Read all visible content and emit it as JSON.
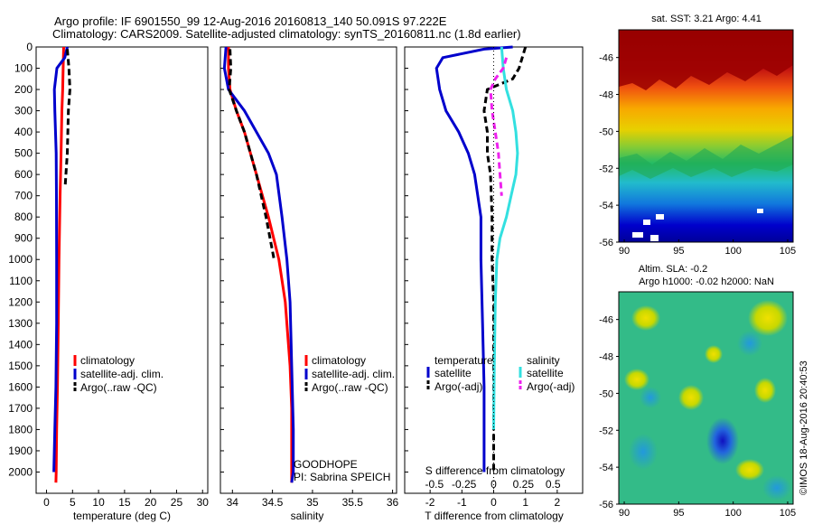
{
  "header": {
    "title_line1": "Argo profile: IF 6901550_99 12-Aug-2016 20160813_140 50.091S 97.222E",
    "title_line2": "Climatology: CARS2009. Satellite-adjusted climatology: synTS_20160811.nc (1.8d earlier)"
  },
  "legends": {
    "temperature": [
      "climatology",
      "satellite-adj. clim.",
      "Argo(..raw -QC)"
    ],
    "salinity": [
      "climatology",
      "satellite-adj. clim.",
      "Argo(..raw -QC)"
    ],
    "diff_temperature_title": "temperature",
    "diff_salinity_title": "salinity",
    "diff_temperature": [
      "satellite",
      "Argo(-adj)"
    ],
    "diff_salinity": [
      "satellite",
      "Argo(-adj)"
    ]
  },
  "annotations": {
    "goodhope_line1": "GOODHOPE",
    "goodhope_line2": "PI: Sabrina SPEICH",
    "diff_s_title": "S difference from climatology",
    "map_sst_title": "sat. SST: 3.21 Argo: 4.41",
    "map_sla_line1": "Altim. SLA: -0.2",
    "map_sla_line2": "Argo h1000: -0.02 h2000: NaN",
    "credit": "©IMOS 18-Aug-2016 20:40:53"
  },
  "colors": {
    "climatology": "#ff0000",
    "satellite_adj": "#0000cc",
    "argo": "#000000",
    "sal_satellite": "#33e0e0",
    "sal_argo": "#ee22ee"
  },
  "chart_data": [
    {
      "type": "line",
      "xlabel": "temperature (deg C)",
      "ylabel": "",
      "xlim": [
        -2,
        31
      ],
      "ylim": [
        2100,
        0
      ],
      "xticks": [
        0,
        5,
        10,
        15,
        20,
        25,
        30
      ],
      "yticks": [
        0,
        100,
        200,
        300,
        400,
        500,
        600,
        700,
        800,
        900,
        1000,
        1100,
        1200,
        1300,
        1400,
        1500,
        1600,
        1700,
        1800,
        1900,
        2000
      ],
      "series": [
        {
          "name": "climatology",
          "style": "solid",
          "points": [
            [
              3.3,
              0
            ],
            [
              3.2,
              100
            ],
            [
              3.1,
              200
            ],
            [
              2.95,
              300
            ],
            [
              2.8,
              500
            ],
            [
              2.6,
              700
            ],
            [
              2.4,
              1000
            ],
            [
              2.25,
              1300
            ],
            [
              2.1,
              1600
            ],
            [
              1.95,
              1800
            ],
            [
              1.85,
              2000
            ],
            [
              1.8,
              2050
            ]
          ]
        },
        {
          "name": "satellite-adj. clim.",
          "style": "solid",
          "points": [
            [
              4.0,
              0
            ],
            [
              3.5,
              50
            ],
            [
              2.0,
              100
            ],
            [
              1.5,
              200
            ],
            [
              1.6,
              300
            ],
            [
              1.85,
              500
            ],
            [
              1.9,
              700
            ],
            [
              1.95,
              1000
            ],
            [
              1.95,
              1300
            ],
            [
              1.8,
              1600
            ],
            [
              1.6,
              1800
            ],
            [
              1.4,
              2000
            ]
          ]
        },
        {
          "name": "Argo(..raw -QC)",
          "style": "dashed",
          "points": [
            [
              4.0,
              10
            ],
            [
              4.3,
              100
            ],
            [
              4.5,
              200
            ],
            [
              4.2,
              300
            ],
            [
              4.0,
              500
            ],
            [
              3.6,
              650
            ]
          ]
        }
      ]
    },
    {
      "type": "line",
      "xlabel": "salinity",
      "ylabel": "",
      "xlim": [
        33.85,
        36.05
      ],
      "ylim": [
        2100,
        0
      ],
      "xticks": [
        34,
        34.5,
        35,
        35.5,
        36
      ],
      "series": [
        {
          "name": "climatology",
          "style": "solid",
          "points": [
            [
              33.95,
              0
            ],
            [
              33.95,
              100
            ],
            [
              33.97,
              200
            ],
            [
              34.05,
              300
            ],
            [
              34.15,
              400
            ],
            [
              34.3,
              600
            ],
            [
              34.45,
              800
            ],
            [
              34.58,
              1000
            ],
            [
              34.66,
              1200
            ],
            [
              34.72,
              1500
            ],
            [
              34.74,
              1700
            ],
            [
              34.74,
              2000
            ],
            [
              34.74,
              2050
            ]
          ]
        },
        {
          "name": "satellite-adj. clim.",
          "style": "solid",
          "points": [
            [
              33.92,
              0
            ],
            [
              33.9,
              100
            ],
            [
              33.95,
              200
            ],
            [
              34.15,
              300
            ],
            [
              34.3,
              400
            ],
            [
              34.45,
              500
            ],
            [
              34.55,
              600
            ],
            [
              34.62,
              800
            ],
            [
              34.68,
              1000
            ],
            [
              34.72,
              1200
            ],
            [
              34.74,
              1500
            ],
            [
              34.76,
              1800
            ],
            [
              34.76,
              2000
            ],
            [
              34.74,
              2050
            ]
          ]
        },
        {
          "name": "Argo(..raw -QC)",
          "style": "dashed",
          "points": [
            [
              33.97,
              10
            ],
            [
              33.98,
              100
            ],
            [
              33.96,
              200
            ],
            [
              34.05,
              300
            ],
            [
              34.15,
              400
            ],
            [
              34.3,
              600
            ],
            [
              34.42,
              800
            ],
            [
              34.52,
              1000
            ]
          ]
        }
      ]
    },
    {
      "type": "line",
      "xlabel": "T difference from climatology",
      "ylabel": "",
      "xlim": [
        -2.8,
        2.8
      ],
      "ylim": [
        2100,
        0
      ],
      "xticks": [
        -2,
        -1,
        0,
        1,
        2
      ],
      "top_xticks": [
        -0.5,
        -0.25,
        0,
        0.25,
        0.5
      ],
      "series": [
        {
          "name": "temperature satellite",
          "style": "solid",
          "points": [
            [
              0.6,
              0
            ],
            [
              -0.3,
              10
            ],
            [
              -1.6,
              50
            ],
            [
              -1.8,
              100
            ],
            [
              -1.7,
              200
            ],
            [
              -1.5,
              300
            ],
            [
              -1.1,
              400
            ],
            [
              -0.8,
              500
            ],
            [
              -0.6,
              600
            ],
            [
              -0.5,
              700
            ],
            [
              -0.4,
              800
            ],
            [
              -0.4,
              1000
            ],
            [
              -0.35,
              1300
            ],
            [
              -0.3,
              1600
            ],
            [
              -0.3,
              1800
            ],
            [
              -0.3,
              2000
            ]
          ]
        },
        {
          "name": "temperature Argo(-adj)",
          "style": "dashed",
          "points": [
            [
              1.0,
              0
            ],
            [
              0.8,
              100
            ],
            [
              0.6,
              150
            ],
            [
              -0.2,
              200
            ],
            [
              -0.3,
              300
            ],
            [
              -0.2,
              400
            ],
            [
              -0.2,
              500
            ],
            [
              -0.1,
              600
            ],
            [
              -0.05,
              800
            ],
            [
              -0.05,
              1000
            ],
            [
              0,
              1200
            ],
            [
              0,
              1500
            ],
            [
              0,
              1800
            ],
            [
              0,
              2000
            ]
          ]
        },
        {
          "name": "salinity satellite",
          "style": "solid",
          "points": [
            [
              0.25,
              0
            ],
            [
              0.3,
              100
            ],
            [
              0.4,
              200
            ],
            [
              0.6,
              300
            ],
            [
              0.7,
              400
            ],
            [
              0.75,
              500
            ],
            [
              0.7,
              600
            ],
            [
              0.55,
              700
            ],
            [
              0.4,
              800
            ],
            [
              0.2,
              900
            ],
            [
              0.1,
              1000
            ],
            [
              0.05,
              1200
            ],
            [
              0.02,
              1500
            ],
            [
              0,
              1800
            ]
          ]
        },
        {
          "name": "salinity Argo(-adj)",
          "style": "dashed",
          "points": [
            [
              0.4,
              50
            ],
            [
              0.3,
              100
            ],
            [
              0.05,
              150
            ],
            [
              -0.1,
              200
            ],
            [
              -0.05,
              300
            ],
            [
              0.05,
              400
            ],
            [
              0.15,
              500
            ],
            [
              0.2,
              600
            ],
            [
              0.25,
              700
            ]
          ]
        }
      ]
    },
    {
      "type": "heatmap",
      "title": "sat. SST: 3.21 Argo: 4.41",
      "xlim": [
        89.5,
        105.5
      ],
      "ylim": [
        -56,
        -44.5
      ],
      "xticks": [
        90,
        95,
        100,
        105
      ],
      "yticks": [
        -46,
        -48,
        -50,
        -52,
        -54,
        -56
      ]
    },
    {
      "type": "heatmap",
      "title": "Altim. SLA: -0.2",
      "xlim": [
        89.5,
        105.5
      ],
      "ylim": [
        -56,
        -44.5
      ],
      "xticks": [
        90,
        95,
        100,
        105
      ],
      "yticks": [
        -46,
        -48,
        -50,
        -52,
        -54,
        -56
      ]
    }
  ]
}
